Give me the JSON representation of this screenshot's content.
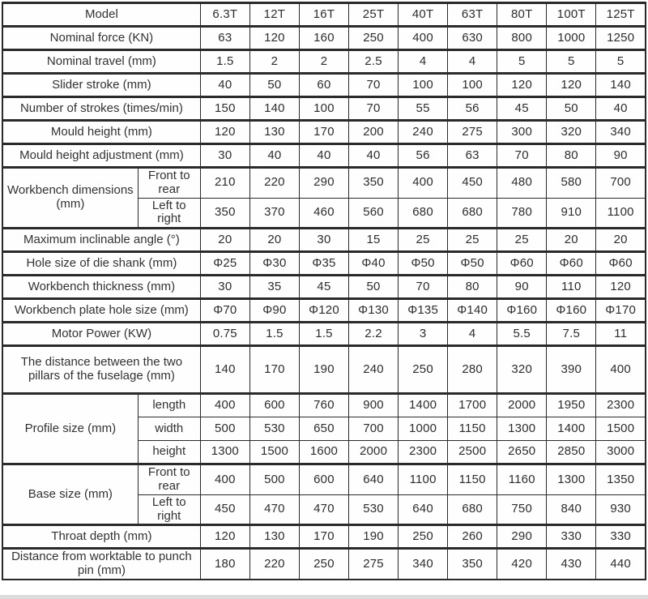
{
  "chart_data": {
    "type": "table",
    "corner_label": "Model",
    "columns": [
      "6.3T",
      "12T",
      "16T",
      "25T",
      "40T",
      "63T",
      "80T",
      "100T",
      "125T"
    ],
    "rows": [
      {
        "label": "Nominal force (KN)",
        "values": [
          "63",
          "120",
          "160",
          "250",
          "400",
          "630",
          "800",
          "1000",
          "1250"
        ]
      },
      {
        "label": "Nominal travel (mm)",
        "values": [
          "1.5",
          "2",
          "2",
          "2.5",
          "4",
          "4",
          "5",
          "5",
          "5"
        ]
      },
      {
        "label": "Slider stroke (mm)",
        "values": [
          "40",
          "50",
          "60",
          "70",
          "100",
          "100",
          "120",
          "120",
          "140"
        ]
      },
      {
        "label": "Number of strokes (times/min)",
        "values": [
          "150",
          "140",
          "100",
          "70",
          "55",
          "56",
          "45",
          "50",
          "40"
        ]
      },
      {
        "label": "Mould height (mm)",
        "values": [
          "120",
          "130",
          "170",
          "200",
          "240",
          "275",
          "300",
          "320",
          "340"
        ]
      },
      {
        "label": "Mould height adjustment (mm)",
        "values": [
          "30",
          "40",
          "40",
          "40",
          "56",
          "63",
          "70",
          "80",
          "90"
        ]
      },
      {
        "label": "Workbench dimensions (mm)",
        "subrows": [
          {
            "label": "Front to rear",
            "values": [
              "210",
              "220",
              "290",
              "350",
              "400",
              "450",
              "480",
              "580",
              "700"
            ]
          },
          {
            "label": "Left to right",
            "values": [
              "350",
              "370",
              "460",
              "560",
              "680",
              "680",
              "780",
              "910",
              "1100"
            ]
          }
        ]
      },
      {
        "label": "Maximum inclinable angle (°)",
        "values": [
          "20",
          "20",
          "30",
          "15",
          "25",
          "25",
          "25",
          "20",
          "20"
        ]
      },
      {
        "label": "Hole size of die shank (mm)",
        "values": [
          "Φ25",
          "Φ30",
          "Φ35",
          "Φ40",
          "Φ50",
          "Φ50",
          "Φ60",
          "Φ60",
          "Φ60"
        ]
      },
      {
        "label": "Workbench thickness (mm)",
        "values": [
          "30",
          "35",
          "45",
          "50",
          "70",
          "80",
          "90",
          "110",
          "120"
        ]
      },
      {
        "label": "Workbench plate hole size (mm)",
        "values": [
          "Φ70",
          "Φ90",
          "Φ120",
          "Φ130",
          "Φ135",
          "Φ140",
          "Φ160",
          "Φ160",
          "Φ170"
        ]
      },
      {
        "label": "Motor Power (KW)",
        "values": [
          "0.75",
          "1.5",
          "1.5",
          "2.2",
          "3",
          "4",
          "5.5",
          "7.5",
          "11"
        ]
      },
      {
        "label": "The distance between the two pillars of the fuselage (mm)",
        "tall": true,
        "values": [
          "140",
          "170",
          "190",
          "240",
          "250",
          "280",
          "320",
          "390",
          "400"
        ]
      },
      {
        "label": "Profile size (mm)",
        "subrows": [
          {
            "label": "length",
            "values": [
              "400",
              "600",
              "760",
              "900",
              "1400",
              "1700",
              "2000",
              "1950",
              "2300"
            ]
          },
          {
            "label": "width",
            "values": [
              "500",
              "530",
              "650",
              "700",
              "1000",
              "1150",
              "1300",
              "1400",
              "1500"
            ]
          },
          {
            "label": "height",
            "values": [
              "1300",
              "1500",
              "1600",
              "2000",
              "2300",
              "2500",
              "2650",
              "2850",
              "3000"
            ]
          }
        ]
      },
      {
        "label": "Base size (mm)",
        "subrows": [
          {
            "label": "Front to rear",
            "values": [
              "400",
              "500",
              "600",
              "640",
              "1100",
              "1150",
              "1160",
              "1300",
              "1350"
            ]
          },
          {
            "label": "Left to right",
            "values": [
              "450",
              "470",
              "470",
              "530",
              "640",
              "680",
              "750",
              "840",
              "930"
            ]
          }
        ]
      },
      {
        "label": "Throat depth (mm)",
        "values": [
          "120",
          "130",
          "170",
          "190",
          "250",
          "260",
          "290",
          "330",
          "330"
        ]
      },
      {
        "label": "Distance from worktable to punch pin (mm)",
        "values": [
          "180",
          "220",
          "250",
          "275",
          "340",
          "350",
          "420",
          "430",
          "440"
        ]
      }
    ]
  }
}
